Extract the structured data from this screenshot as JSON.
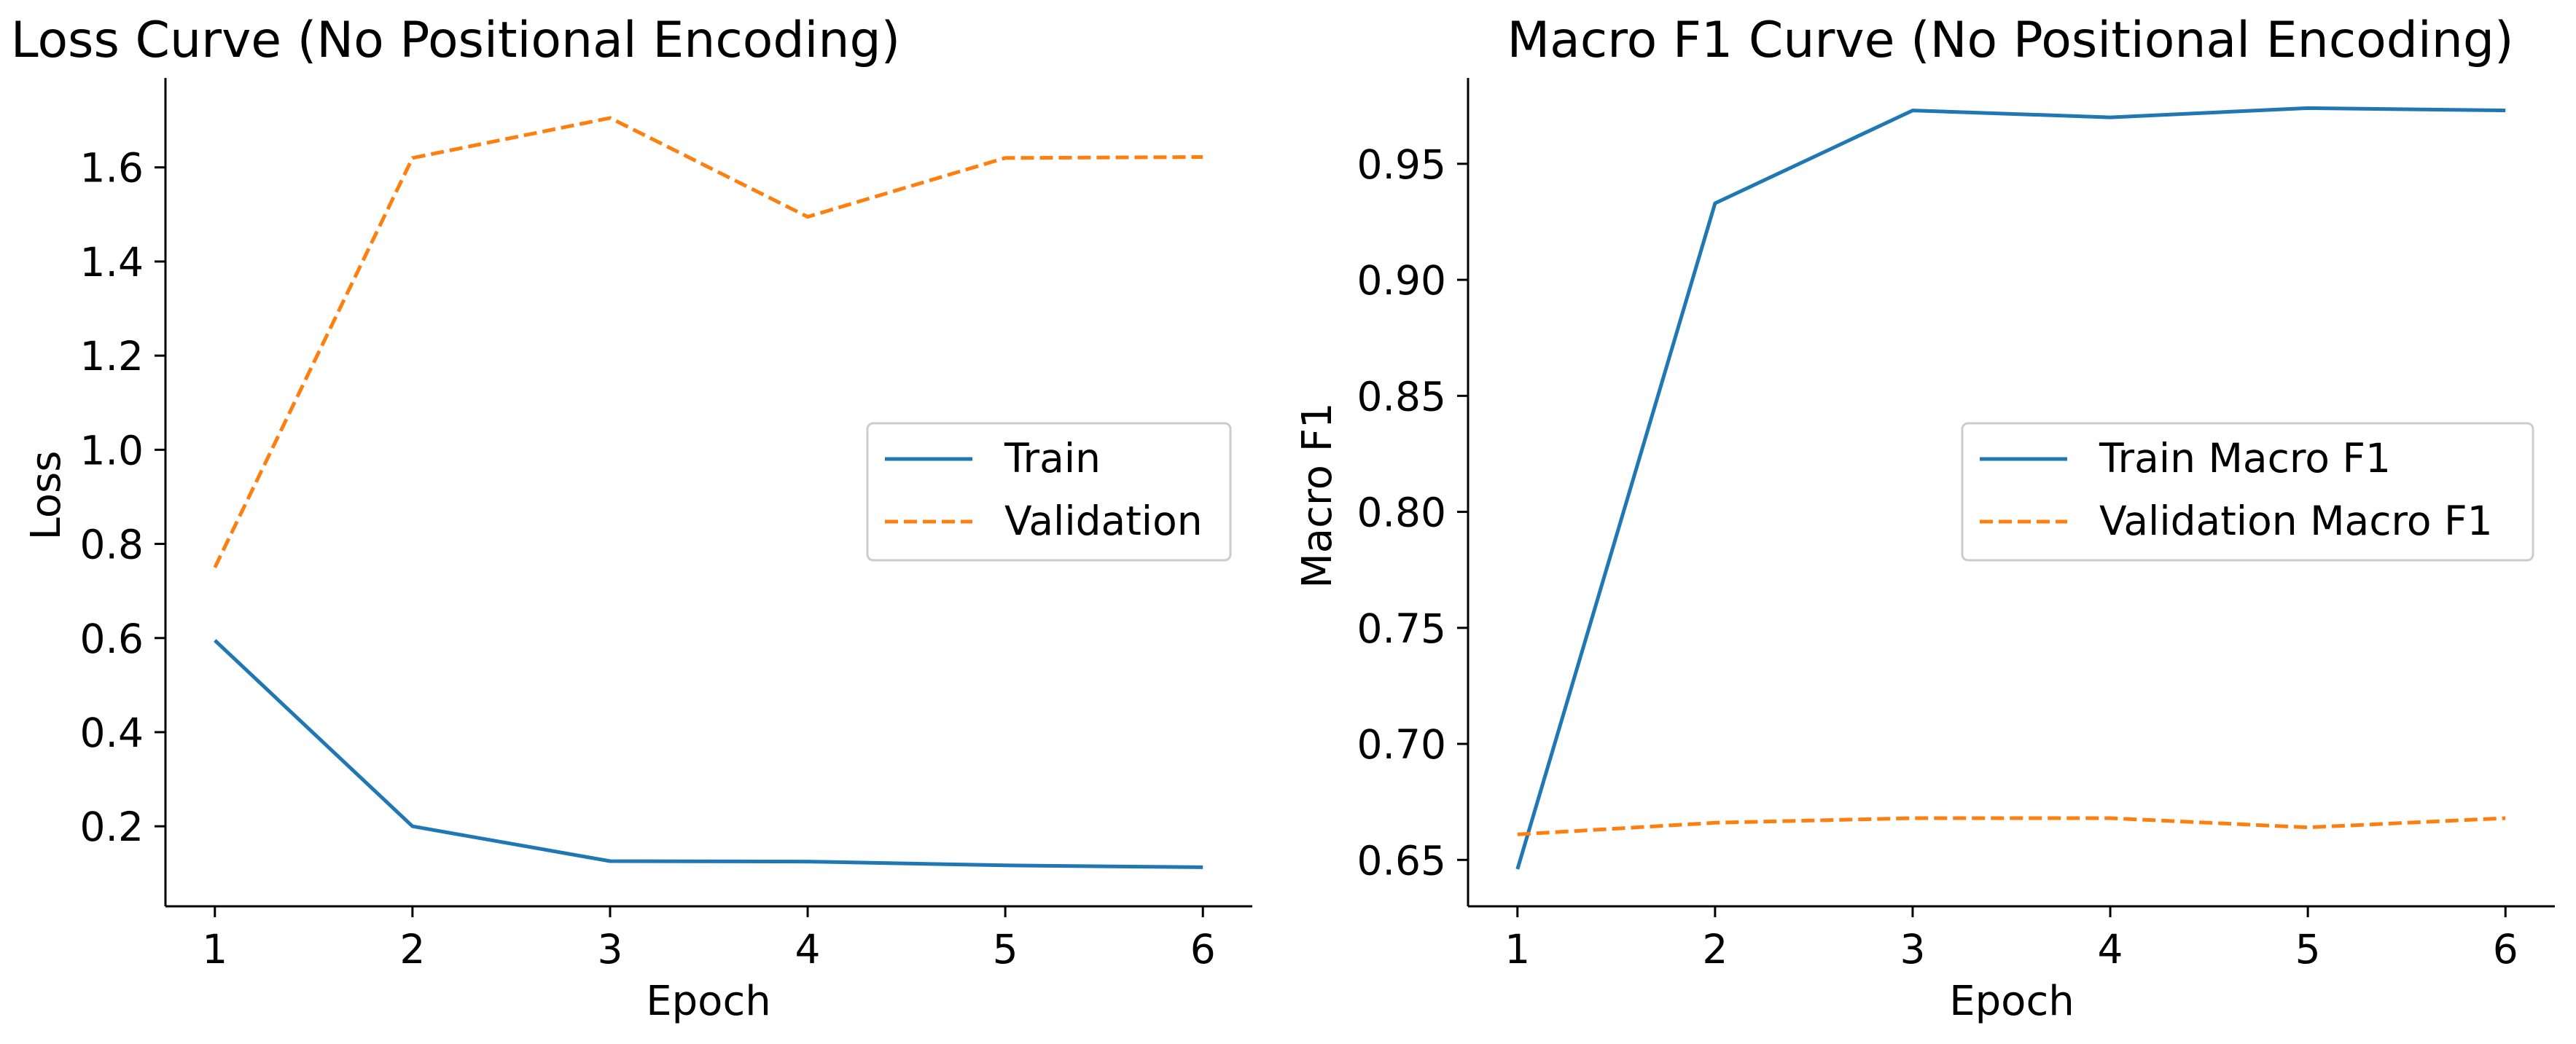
{
  "colors": {
    "train": "#1f77b4",
    "validation": "#ff7f0e"
  },
  "chart_data": [
    {
      "type": "line",
      "title": "Loss Curve (No Positional Encoding)",
      "xlabel": "Epoch",
      "ylabel": "Loss",
      "x": [
        1,
        2,
        3,
        4,
        5,
        6
      ],
      "xticks": [
        "1",
        "2",
        "3",
        "4",
        "5",
        "6"
      ],
      "xlim": [
        0.75,
        6.25
      ],
      "yticks": [
        "0.2",
        "0.4",
        "0.6",
        "0.8",
        "1.0",
        "1.2",
        "1.4",
        "1.6"
      ],
      "ylim": [
        0.03,
        1.79
      ],
      "grid": false,
      "legend_position": "center-right",
      "series": [
        {
          "name": "Train",
          "style": "solid",
          "values": [
            0.595,
            0.2,
            0.126,
            0.125,
            0.117,
            0.113
          ]
        },
        {
          "name": "Validation",
          "style": "dashed",
          "values": [
            0.75,
            1.62,
            1.705,
            1.495,
            1.62,
            1.622
          ]
        }
      ]
    },
    {
      "type": "line",
      "title": "Macro F1 Curve (No Positional Encoding)",
      "xlabel": "Epoch",
      "ylabel": "Macro F1",
      "x": [
        1,
        2,
        3,
        4,
        5,
        6
      ],
      "xticks": [
        "1",
        "2",
        "3",
        "4",
        "5",
        "6"
      ],
      "xlim": [
        0.75,
        6.25
      ],
      "yticks": [
        "0.65",
        "0.70",
        "0.75",
        "0.80",
        "0.85",
        "0.90",
        "0.95"
      ],
      "ylim": [
        0.63,
        0.987
      ],
      "grid": false,
      "legend_position": "center-right",
      "series": [
        {
          "name": "Train Macro F1",
          "style": "solid",
          "values": [
            0.646,
            0.933,
            0.973,
            0.97,
            0.974,
            0.973
          ]
        },
        {
          "name": "Validation Macro F1",
          "style": "dashed",
          "values": [
            0.661,
            0.666,
            0.668,
            0.668,
            0.664,
            0.668
          ]
        }
      ]
    }
  ]
}
